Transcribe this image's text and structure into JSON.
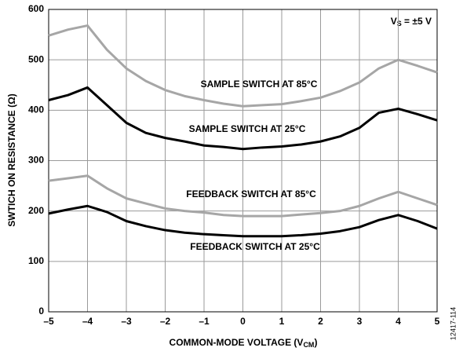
{
  "chart_data": {
    "type": "line",
    "y_label": "SWTICH ON RESISTANCE (Ω)",
    "x_label": {
      "text": "COMMON-MODE VOLTAGE (V",
      "sub": "CM",
      "end": ")"
    },
    "annotation": {
      "text": "V",
      "sub": "S",
      "end": " = ±5 V"
    },
    "side_note": "12417-114",
    "x": [
      -5,
      -4.5,
      -4,
      -3.5,
      -3,
      -2.5,
      -2,
      -1.5,
      -1,
      -0.5,
      0,
      0.5,
      1,
      1.5,
      2,
      2.5,
      3,
      3.5,
      4,
      4.5,
      5
    ],
    "series": [
      {
        "name": "SAMPLE SWITCH AT 85°C",
        "color": "#a6a6a6",
        "values": [
          548,
          560,
          568,
          520,
          483,
          458,
          440,
          428,
          420,
          413,
          408,
          410,
          412,
          418,
          425,
          438,
          455,
          483,
          500,
          488,
          475
        ]
      },
      {
        "name": "SAMPLE SWITCH AT 25°C",
        "color": "#000000",
        "values": [
          420,
          430,
          445,
          410,
          375,
          355,
          345,
          338,
          330,
          327,
          323,
          326,
          328,
          332,
          338,
          348,
          365,
          395,
          403,
          392,
          380
        ]
      },
      {
        "name": "FEEDBACK SWITCH AT 85°C",
        "color": "#a6a6a6",
        "values": [
          260,
          265,
          270,
          245,
          225,
          215,
          205,
          200,
          197,
          192,
          190,
          190,
          190,
          193,
          196,
          200,
          210,
          225,
          238,
          225,
          212
        ]
      },
      {
        "name": "FEEDBACK SWITCH AT 25°C",
        "color": "#000000",
        "values": [
          195,
          203,
          210,
          198,
          180,
          170,
          162,
          157,
          154,
          152,
          150,
          150,
          150,
          152,
          155,
          160,
          168,
          182,
          192,
          180,
          165
        ]
      }
    ],
    "xlim": [
      -5,
      5
    ],
    "xticks": [
      {
        "value": -5,
        "label": "–5"
      },
      {
        "value": -4,
        "label": "–4"
      },
      {
        "value": -3,
        "label": "–3"
      },
      {
        "value": -2,
        "label": "–2"
      },
      {
        "value": -1,
        "label": "–1"
      },
      0,
      1,
      2,
      3,
      4,
      5
    ],
    "ylim": [
      0,
      600
    ],
    "yticks": [
      0,
      100,
      200,
      300,
      400,
      500,
      600
    ],
    "grid": true
  }
}
